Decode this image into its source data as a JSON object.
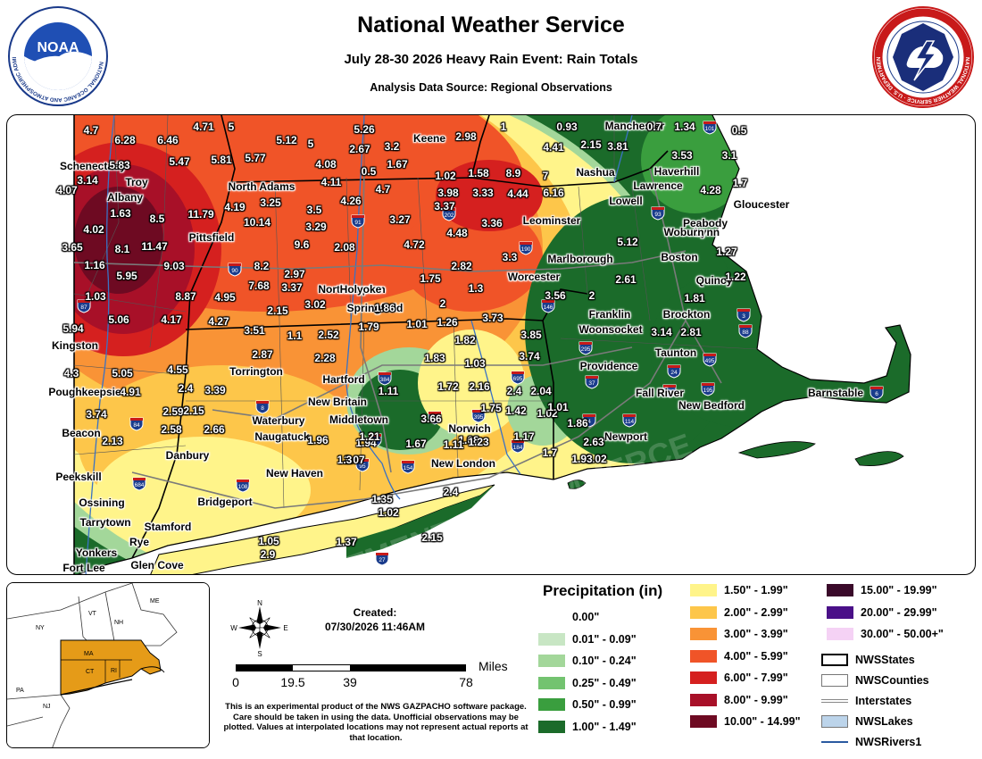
{
  "header": {
    "title": "National Weather Service",
    "subtitle": "July 28-30 2026 Heavy Rain Event: Rain Totals",
    "source": "Analysis Data Source: Regional Observations",
    "noaa_logo_text": "NATIONAL OCEANIC AND ATMOSPHERIC ADMINISTRATION · U.S. DEPARTMENT OF COMMERCE",
    "noaa_logo_name": "NOAA",
    "nws_logo_text": "NATIONAL WEATHER SERVICE · U.S. DEPARTMENT OF COMMERCE"
  },
  "map": {
    "cities": [
      "Schenectady",
      "Troy",
      "Albany",
      "Kingston",
      "Poughkeepsie",
      "Beacon",
      "Peekskill",
      "Ossining",
      "Tarrytown",
      "Yonkers",
      "Fort Lee",
      "Glen Cove",
      "Rye",
      "Stamford",
      "Bridgeport",
      "New Haven",
      "Danbury",
      "Naugatuck",
      "Waterbury",
      "Torrington",
      "Pittsfield",
      "North Adams",
      "Northampton",
      "Holyoke",
      "Springfield",
      "Hartford",
      "New Britain",
      "Middletown",
      "Norwich",
      "New London",
      "Worcester",
      "Marlborough",
      "Leominster",
      "Keene",
      "Manchester",
      "Nashua",
      "Lowell",
      "Lawrence",
      "Haverhill",
      "Gloucester",
      "Peabody",
      "Lynn",
      "Woburn",
      "Boston",
      "Quincy",
      "Brockton",
      "Franklin",
      "Woonsocket",
      "Providence",
      "Taunton",
      "Fall River",
      "New Bedford",
      "Newport",
      "Barnstable"
    ],
    "values": [
      "4.7",
      "6.28",
      "6.46",
      "4.71",
      "5",
      "5.26",
      "1",
      "0.93",
      "0.7",
      "1.34",
      "0.5",
      "5.83",
      "5.47",
      "5.81",
      "5.77",
      "5.12",
      "5",
      "2.67",
      "3.2",
      "2.98",
      "4.07",
      "3.14",
      "4.08",
      "1.67",
      "0.5",
      "1.02",
      "1.58",
      "8.9",
      "7",
      "4.41",
      "2.15",
      "3.81",
      "3.53",
      "3.1",
      "4.11",
      "4.7",
      "3.98",
      "3.33",
      "4.44",
      "6.16",
      "4.28",
      "1.7",
      "1.63",
      "8.5",
      "11.79",
      "4.19",
      "3.25",
      "3.5",
      "4.26",
      "3.37",
      "3.27",
      "3.36",
      "4.02",
      "10.14",
      "3.29",
      "4.48",
      "3.65",
      "8.1",
      "11.47",
      "9.6",
      "2.08",
      "4.72",
      "5.12",
      "1.27",
      "1.16",
      "9.03",
      "8.2",
      "3.3",
      "5.95",
      "7.68",
      "2.97",
      "1.75",
      "2.82",
      "2.61",
      "1.22",
      "1.03",
      "8.87",
      "4.95",
      "3.37",
      "1.3",
      "3.56",
      "2",
      "1.81",
      "5.94",
      "5.06",
      "4.17",
      "4.27",
      "2.15",
      "3.02",
      "1.86",
      "2",
      "3.73",
      "3.85",
      "3.14",
      "2.81",
      "3.51",
      "1.1",
      "2.52",
      "1.79",
      "1.01",
      "1.26",
      "1.82",
      "3.74",
      "4.3",
      "5.05",
      "4.55",
      "2.87",
      "2.28",
      "1.83",
      "1.03",
      "2.04",
      "4.91",
      "2.4",
      "3.39",
      "1.72",
      "2.16",
      "1.75",
      "2.4",
      "3.74",
      "2.59",
      "2.15",
      "1.11",
      "1.42",
      "1.02",
      "2.13",
      "2.58",
      "2.66",
      "3.66",
      "1.01",
      "1.86",
      "1.08",
      "1.67",
      "1.11",
      "1.23",
      "1.96",
      "1.94",
      "1.17",
      "3.07",
      "2.63",
      "1.02",
      "1.7",
      "1.3",
      "1.21",
      "1.93",
      "2.4",
      "1.35",
      "1.02",
      "1.05",
      "2.9",
      "1.37",
      "2.15"
    ],
    "highways": [
      "101",
      "93",
      "91",
      "202",
      "190",
      "90",
      "146",
      "3",
      "88",
      "87",
      "295",
      "37",
      "24",
      "495",
      "140",
      "195",
      "6",
      "384",
      "395",
      "695",
      "2",
      "84",
      "8",
      "9",
      "4",
      "114",
      "184",
      "95",
      "154",
      "108",
      "684",
      "27"
    ],
    "watermark": "DEPARTMENT OF COMMERCE"
  },
  "inset": {
    "states": [
      "ME",
      "VT",
      "NH",
      "NY",
      "MA",
      "CT",
      "RI",
      "PA",
      "NJ"
    ],
    "highlight_color": "#e59b18"
  },
  "info": {
    "created_label": "Created:",
    "created_value": "07/30/2026 11:46AM",
    "compass": {
      "n": "N",
      "s": "S",
      "e": "E",
      "w": "W"
    },
    "scale": {
      "unit": "Miles",
      "ticks": [
        "0",
        "19.5",
        "39",
        "78"
      ]
    },
    "disclaimer": "This is an experimental product of the NWS GAZPACHO software package. Care should be taken in using the data. Unofficial observations may be plotted. Values at interpolated locations may not represent actual reports at that location."
  },
  "legend": {
    "title": "Precipitation (in)",
    "col1": [
      {
        "label": "0.00\"",
        "color": "#ffffff"
      },
      {
        "label": "0.01\" - 0.09\"",
        "color": "#c8e6c4"
      },
      {
        "label": "0.10\" - 0.24\"",
        "color": "#a3d79a"
      },
      {
        "label": "0.25\" - 0.49\"",
        "color": "#73c370"
      },
      {
        "label": "0.50\" - 0.99\"",
        "color": "#3a9e3e"
      },
      {
        "label": "1.00\" - 1.49\"",
        "color": "#1b6b2a"
      }
    ],
    "col2": [
      {
        "label": "1.50\" - 1.99\"",
        "color": "#fff48a"
      },
      {
        "label": "2.00\" - 2.99\"",
        "color": "#fdc64a"
      },
      {
        "label": "3.00\" - 3.99\"",
        "color": "#f99336"
      },
      {
        "label": "4.00\" - 5.99\"",
        "color": "#f05428"
      },
      {
        "label": "6.00\" - 7.99\"",
        "color": "#d5201f"
      },
      {
        "label": "8.00\" - 9.99\"",
        "color": "#a81028"
      },
      {
        "label": "10.00\" - 14.99\"",
        "color": "#6e0a22"
      }
    ],
    "col3": [
      {
        "label": "15.00\" - 19.99\"",
        "color": "#3a0a2a"
      },
      {
        "label": "20.00\" - 29.99\"",
        "color": "#4a1088"
      },
      {
        "label": "30.00\" - 50.00+\"",
        "color": "#f5d2f5"
      }
    ],
    "layers": [
      {
        "label": "NWSStates",
        "type": "states"
      },
      {
        "label": "NWSCounties",
        "type": "counties"
      },
      {
        "label": "Interstates",
        "type": "interstates"
      },
      {
        "label": "NWSLakes",
        "type": "lakes"
      },
      {
        "label": "NWSRivers1",
        "type": "rivers"
      }
    ]
  }
}
